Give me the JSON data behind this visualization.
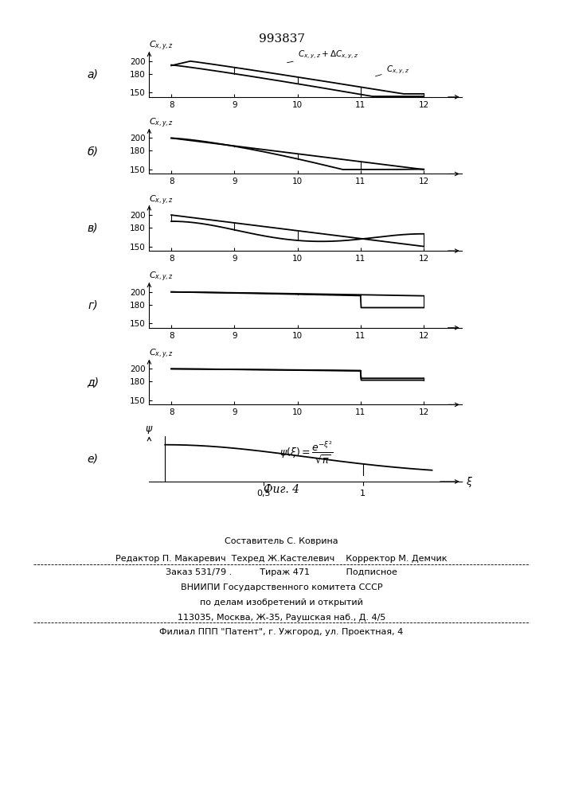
{
  "title": "993837",
  "background_color": "#ffffff",
  "yticks_main": [
    150,
    180,
    200
  ],
  "xticks_main": [
    8,
    9,
    10,
    11,
    12
  ],
  "footer_texts": [
    "Составитель С. Коврина",
    "Редактор П. Макаревич  Техред Ж.Кастелевич    Корректор М. Демчик",
    "Заказ 531/79 .          Тираж 471             Подписное",
    "ВНИИПИ Государственного комитета СССР",
    "по делам изобретений и открытий",
    "113035, Москва, Ж-35, Раушская наб., Д. 4/5",
    "Филиал ППП \"Патент\", г. Ужгород, ул. Проектная, 4"
  ]
}
